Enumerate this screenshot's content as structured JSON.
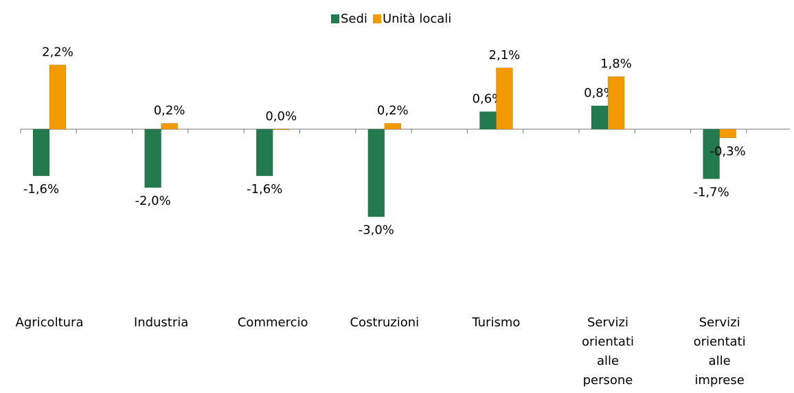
{
  "chart_data": {
    "type": "bar",
    "categories": [
      "Agricoltura",
      "Industria",
      "Commercio",
      "Costruzioni",
      "Turismo",
      "Servizi orientati alle persone",
      "Servizi orientati alle imprese"
    ],
    "series": [
      {
        "name": "Sedi",
        "color": "#237a4e",
        "values": [
          -1.6,
          -2.0,
          -1.6,
          -3.0,
          0.6,
          0.8,
          -1.7
        ],
        "value_labels": [
          "-1,6%",
          "-2,0%",
          "-1,6%",
          "-3,0%",
          "0,6%",
          "0,8%",
          "-1,7%"
        ]
      },
      {
        "name": "Unità locali",
        "color": "#f39a00",
        "values": [
          2.2,
          0.2,
          0.0,
          0.2,
          2.1,
          1.8,
          -0.3
        ],
        "value_labels": [
          "2,2%",
          "0,2%",
          "0,0%",
          "0,2%",
          "2,1%",
          "1,8%",
          "-0,3%"
        ]
      }
    ],
    "legend": "top"
  }
}
